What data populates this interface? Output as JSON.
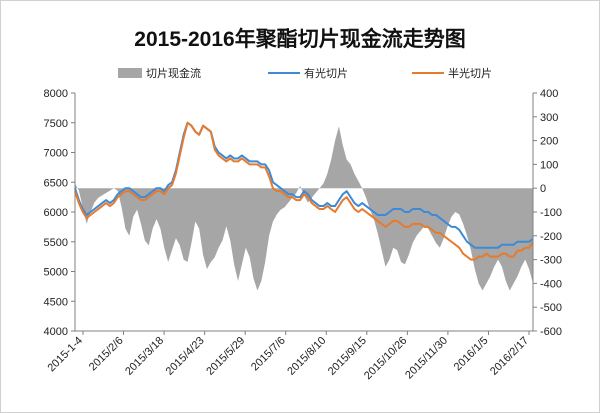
{
  "chart_data": {
    "type": "line",
    "title": "2015-2016年聚酯切片现金流走势图",
    "xlabel": "",
    "ylabel_left": "",
    "ylabel_right": "",
    "legend_placement": "top",
    "grid": false,
    "x_tick_labels": [
      "2015-1-4",
      "2015/2/6",
      "2015/3/18",
      "2015/4/23",
      "2015/5/29",
      "2015/7/6",
      "2015/8/10",
      "2015/9/15",
      "2015/10/26",
      "2015/11/30",
      "2016/1/5",
      "2016/2/17"
    ],
    "y_left": {
      "ticks": [
        4000,
        4500,
        5000,
        5500,
        6000,
        6500,
        7000,
        7500,
        8000
      ],
      "range": [
        4000,
        8000
      ]
    },
    "y_right": {
      "ticks": [
        400,
        300,
        200,
        100,
        0,
        -100,
        -200,
        -300,
        -400,
        -500,
        -600
      ],
      "range": [
        -600,
        400
      ]
    },
    "series": [
      {
        "name": "切片现金流",
        "kind": "area",
        "axis": "right",
        "color": "#a6a6a6",
        "values": [
          20,
          -10,
          -80,
          -150,
          -100,
          -60,
          -40,
          -30,
          -20,
          -10,
          0,
          -10,
          -80,
          -170,
          -200,
          -120,
          -90,
          -150,
          -220,
          -240,
          -170,
          -130,
          -170,
          -250,
          -310,
          -260,
          -210,
          -240,
          -300,
          -310,
          -230,
          -140,
          -170,
          -280,
          -340,
          -310,
          -290,
          -250,
          -220,
          -160,
          -220,
          -320,
          -390,
          -320,
          -250,
          -290,
          -380,
          -430,
          -390,
          -310,
          -200,
          -140,
          -110,
          -90,
          -80,
          -60,
          -40,
          -20,
          10,
          -30,
          -60,
          -40,
          -20,
          0,
          20,
          60,
          120,
          200,
          260,
          180,
          120,
          100,
          60,
          30,
          0,
          -40,
          -90,
          -130,
          -190,
          -260,
          -330,
          -300,
          -250,
          -260,
          -310,
          -320,
          -280,
          -230,
          -200,
          -180,
          -160,
          -170,
          -200,
          -230,
          -250,
          -210,
          -160,
          -120,
          -100,
          -110,
          -150,
          -200,
          -260,
          -340,
          -400,
          -430,
          -400,
          -370,
          -330,
          -300,
          -330,
          -390,
          -430,
          -400,
          -370,
          -330,
          -300,
          -340,
          -400
        ]
      },
      {
        "name": "有光切片",
        "kind": "line",
        "axis": "left",
        "color": "#3d8ad6",
        "values": [
          6400,
          6200,
          6050,
          5950,
          6000,
          6050,
          6100,
          6150,
          6200,
          6150,
          6200,
          6300,
          6350,
          6400,
          6400,
          6350,
          6300,
          6250,
          6250,
          6300,
          6350,
          6400,
          6400,
          6350,
          6450,
          6500,
          6700,
          7000,
          7300,
          7500,
          7450,
          7350,
          7300,
          7450,
          7400,
          7350,
          7100,
          7000,
          6950,
          6900,
          6950,
          6900,
          6900,
          6950,
          6900,
          6850,
          6850,
          6850,
          6800,
          6800,
          6700,
          6500,
          6450,
          6400,
          6350,
          6300,
          6300,
          6250,
          6250,
          6350,
          6300,
          6200,
          6150,
          6100,
          6100,
          6150,
          6100,
          6100,
          6200,
          6300,
          6350,
          6250,
          6150,
          6100,
          6150,
          6100,
          6050,
          6000,
          5950,
          5950,
          5950,
          6000,
          6050,
          6050,
          6050,
          6000,
          6000,
          6050,
          6050,
          6050,
          6000,
          6000,
          5950,
          5950,
          5900,
          5850,
          5800,
          5750,
          5750,
          5700,
          5600,
          5500,
          5450,
          5400,
          5400,
          5400,
          5400,
          5400,
          5400,
          5400,
          5450,
          5450,
          5450,
          5450,
          5500,
          5500,
          5500,
          5500,
          5550
        ]
      },
      {
        "name": "半光切片",
        "kind": "line",
        "axis": "left",
        "color": "#e87a2c",
        "values": [
          6350,
          6150,
          6000,
          5900,
          5950,
          6000,
          6050,
          6100,
          6150,
          6100,
          6150,
          6250,
          6300,
          6350,
          6350,
          6300,
          6250,
          6200,
          6200,
          6250,
          6300,
          6350,
          6350,
          6300,
          6400,
          6450,
          6650,
          6950,
          7250,
          7500,
          7450,
          7350,
          7300,
          7450,
          7400,
          7350,
          7050,
          6950,
          6900,
          6850,
          6900,
          6850,
          6850,
          6900,
          6850,
          6800,
          6800,
          6800,
          6750,
          6750,
          6600,
          6400,
          6350,
          6350,
          6300,
          6250,
          6250,
          6200,
          6200,
          6300,
          6250,
          6150,
          6100,
          6050,
          6050,
          6100,
          6050,
          6000,
          6100,
          6200,
          6250,
          6150,
          6050,
          6000,
          6050,
          6000,
          5950,
          5900,
          5850,
          5800,
          5750,
          5800,
          5850,
          5850,
          5800,
          5750,
          5750,
          5800,
          5800,
          5800,
          5750,
          5750,
          5700,
          5650,
          5650,
          5600,
          5550,
          5500,
          5450,
          5400,
          5300,
          5250,
          5200,
          5200,
          5250,
          5250,
          5300,
          5250,
          5250,
          5250,
          5300,
          5300,
          5250,
          5250,
          5350,
          5350,
          5400,
          5400,
          5500
        ]
      }
    ]
  }
}
